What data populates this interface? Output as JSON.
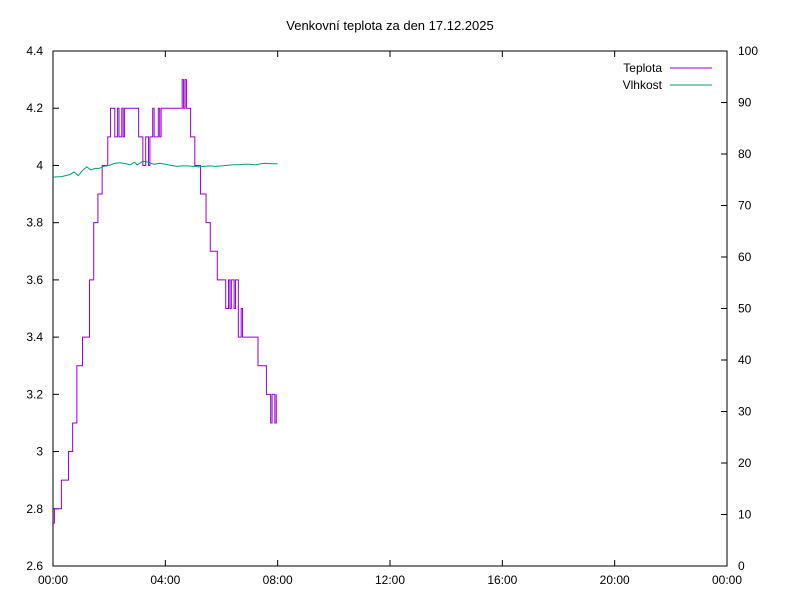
{
  "chart_data": {
    "type": "line",
    "title": "Venkovní teplota za den 17.12.2025",
    "xlabel": "",
    "ylabel": "",
    "y2label": "",
    "x_unit": "hours",
    "xlim": [
      0,
      24
    ],
    "x_ticks": [
      {
        "value": 0,
        "label": "00:00"
      },
      {
        "value": 4,
        "label": "04:00"
      },
      {
        "value": 8,
        "label": "08:00"
      },
      {
        "value": 12,
        "label": "12:00"
      },
      {
        "value": 16,
        "label": "16:00"
      },
      {
        "value": 20,
        "label": "20:00"
      },
      {
        "value": 24,
        "label": "00:00"
      }
    ],
    "ylim": [
      2.6,
      4.4
    ],
    "y_ticks": [
      {
        "value": 2.6,
        "label": "2.6"
      },
      {
        "value": 2.8,
        "label": "2.8"
      },
      {
        "value": 3.0,
        "label": "3"
      },
      {
        "value": 3.2,
        "label": "3.2"
      },
      {
        "value": 3.4,
        "label": "3.4"
      },
      {
        "value": 3.6,
        "label": "3.6"
      },
      {
        "value": 3.8,
        "label": "3.8"
      },
      {
        "value": 4.0,
        "label": "4"
      },
      {
        "value": 4.2,
        "label": "4.2"
      },
      {
        "value": 4.4,
        "label": "4.4"
      }
    ],
    "y2lim": [
      0,
      100
    ],
    "y2_ticks": [
      {
        "value": 0,
        "label": "0"
      },
      {
        "value": 10,
        "label": "10"
      },
      {
        "value": 20,
        "label": "20"
      },
      {
        "value": 30,
        "label": "30"
      },
      {
        "value": 40,
        "label": "40"
      },
      {
        "value": 50,
        "label": "50"
      },
      {
        "value": 60,
        "label": "60"
      },
      {
        "value": 70,
        "label": "70"
      },
      {
        "value": 80,
        "label": "80"
      },
      {
        "value": 90,
        "label": "90"
      },
      {
        "value": 100,
        "label": "100"
      }
    ],
    "grid": false,
    "legend": "top-right",
    "series": [
      {
        "name": "Teplota",
        "axis": "left",
        "color": "#9400d3",
        "step": true,
        "x": [
          0.0,
          0.05,
          0.3,
          0.55,
          0.7,
          0.85,
          1.05,
          1.3,
          1.45,
          1.6,
          1.75,
          1.95,
          2.05,
          2.2,
          2.3,
          2.35,
          2.45,
          2.5,
          2.55,
          2.6,
          2.65,
          2.75,
          3.05,
          3.2,
          3.3,
          3.4,
          3.45,
          3.55,
          3.6,
          3.75,
          3.8,
          3.85,
          3.9,
          4.0,
          4.05,
          4.6,
          4.65,
          4.7,
          4.75,
          4.8,
          4.9,
          4.95,
          5.05,
          5.25,
          5.45,
          5.6,
          5.85,
          6.15,
          6.25,
          6.3,
          6.35,
          6.45,
          6.5,
          6.6,
          6.7,
          6.75,
          6.85,
          7.3,
          7.6,
          7.65,
          7.75,
          7.8,
          7.9,
          7.95
        ],
        "values": [
          2.75,
          2.8,
          2.9,
          3.0,
          3.1,
          3.3,
          3.4,
          3.6,
          3.8,
          3.9,
          4.0,
          4.1,
          4.2,
          4.1,
          4.2,
          4.1,
          4.2,
          4.1,
          4.2,
          4.2,
          4.2,
          4.2,
          4.1,
          4.0,
          4.1,
          4.0,
          4.1,
          4.2,
          4.1,
          4.2,
          4.1,
          4.2,
          4.2,
          4.2,
          4.2,
          4.3,
          4.2,
          4.3,
          4.2,
          4.2,
          4.1,
          4.1,
          4.0,
          3.9,
          3.8,
          3.7,
          3.6,
          3.5,
          3.6,
          3.5,
          3.6,
          3.5,
          3.6,
          3.4,
          3.5,
          3.4,
          3.4,
          3.3,
          3.2,
          3.2,
          3.1,
          3.2,
          3.1,
          3.2
        ]
      },
      {
        "name": "Vlhkost",
        "axis": "right",
        "color": "#009e73",
        "step": false,
        "x": [
          0.0,
          0.3,
          0.6,
          0.75,
          0.9,
          1.05,
          1.2,
          1.35,
          1.5,
          1.65,
          1.8,
          2.0,
          2.2,
          2.4,
          2.6,
          2.75,
          2.9,
          3.0,
          3.2,
          3.4,
          3.6,
          3.8,
          4.0,
          4.2,
          4.4,
          4.6,
          4.8,
          5.0,
          5.2,
          5.4,
          5.6,
          5.8,
          6.0,
          6.2,
          6.4,
          6.6,
          6.8,
          7.0,
          7.2,
          7.4,
          7.6,
          7.8,
          8.0
        ],
        "values": [
          75.5,
          75.6,
          76.0,
          76.5,
          75.8,
          76.8,
          77.5,
          76.9,
          77.2,
          77.2,
          77.6,
          77.8,
          78.2,
          78.3,
          78.1,
          77.9,
          78.4,
          77.9,
          78.6,
          78.4,
          78.0,
          78.2,
          78.0,
          77.8,
          77.6,
          77.7,
          77.7,
          77.6,
          77.5,
          77.6,
          77.7,
          77.6,
          77.7,
          77.8,
          77.9,
          77.9,
          78.0,
          78.0,
          77.9,
          78.1,
          78.2,
          78.1,
          78.1
        ]
      }
    ]
  }
}
